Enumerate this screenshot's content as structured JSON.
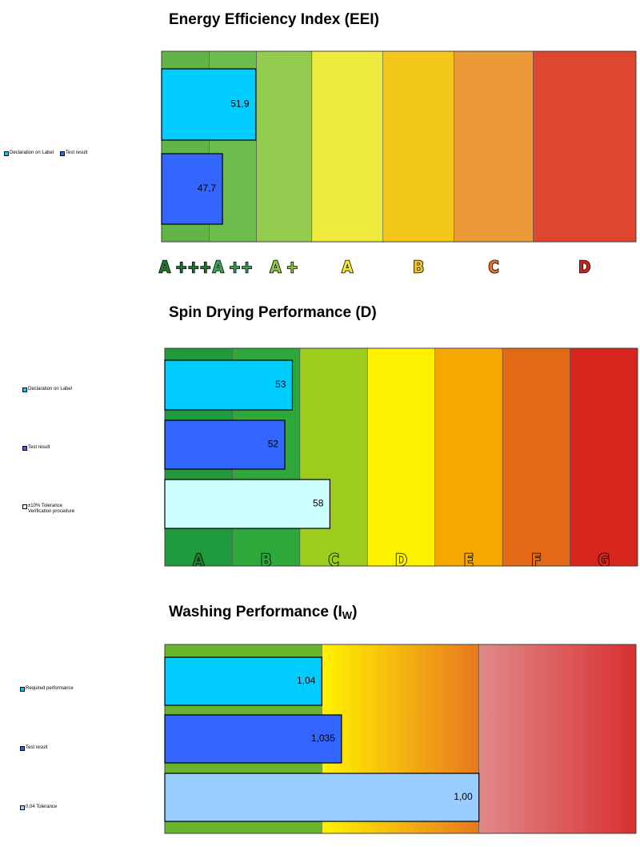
{
  "chart_data": [
    {
      "type": "bar",
      "orientation": "horizontal",
      "title": "Energy Efficiency Index (EEI)",
      "xlim": [
        40,
        100
      ],
      "class_bounds": [
        40,
        46,
        52,
        59,
        68,
        77,
        87,
        100
      ],
      "class_labels": [
        "A +++",
        "A ++",
        "A +",
        "A",
        "B",
        "C",
        "D"
      ],
      "class_colors": [
        "#62b446",
        "#6dbd4e",
        "#93cc4e",
        "#eeea3e",
        "#f4c81a",
        "#ec9a38",
        "#de4630"
      ],
      "class_label_colors": [
        "#1f7a2e",
        "#3aa552",
        "#8dc63f",
        "#f5e72a",
        "#f4c01a",
        "#f07020",
        "#d8201a"
      ],
      "series": [
        {
          "name": "Declaration on Label",
          "color": "#00ccff",
          "values": [
            51.9
          ],
          "value_labels": [
            "51,9"
          ]
        },
        {
          "name": "Test result",
          "color": "#3366ff",
          "values": [
            47.7
          ],
          "value_labels": [
            "47,7"
          ]
        }
      ]
    },
    {
      "type": "bar",
      "orientation": "horizontal",
      "title": "Spin Drying Performance (D)",
      "xlim": [
        36,
        99
      ],
      "class_bounds": [
        36,
        45,
        54,
        63,
        72,
        81,
        90,
        99
      ],
      "class_labels": [
        "A",
        "B",
        "C",
        "D",
        "E",
        "F",
        "G"
      ],
      "class_colors": [
        "#1f9a3c",
        "#2ea83a",
        "#9ccc1e",
        "#fff200",
        "#f5a800",
        "#e26a16",
        "#d8261e"
      ],
      "class_label_colors": [
        "#1f7a2e",
        "#2ea83a",
        "#9ccc1e",
        "#fff200",
        "#f5a800",
        "#e26a16",
        "#d8261e"
      ],
      "series": [
        {
          "name": "Declaration on Label",
          "color": "#00ccff",
          "values": [
            53
          ]
        },
        {
          "name": "Test result",
          "color": "#3366ff",
          "values": [
            52
          ]
        },
        {
          "name": "±10% Tolerance\nVerification procedure",
          "color": "#ccffff",
          "values": [
            58
          ]
        }
      ]
    },
    {
      "type": "bar",
      "orientation": "horizontal",
      "title": "Washing Performance (I",
      "title_subscript": "W",
      "title_suffix": ")",
      "xlim": [
        1.08,
        0.96
      ],
      "class_bounds": [
        1.08,
        1.04,
        1.0,
        0.96
      ],
      "class_colors": [
        [
          "#6ab42d",
          "#6ab42d"
        ],
        [
          "#fff200",
          "#e8781e"
        ],
        [
          "#e08a8a",
          "#d83030"
        ]
      ],
      "series": [
        {
          "name": "Required performance",
          "color": "#00ccff",
          "values": [
            1.04
          ],
          "value_labels": [
            "1,04"
          ]
        },
        {
          "name": "Test result",
          "color": "#3366ff",
          "values": [
            1.035
          ],
          "value_labels": [
            "1,035"
          ]
        },
        {
          "name": "0,04 Tolerance",
          "color": "#99ccff",
          "values": [
            1.0
          ],
          "value_labels": [
            "1,00"
          ]
        }
      ]
    }
  ]
}
